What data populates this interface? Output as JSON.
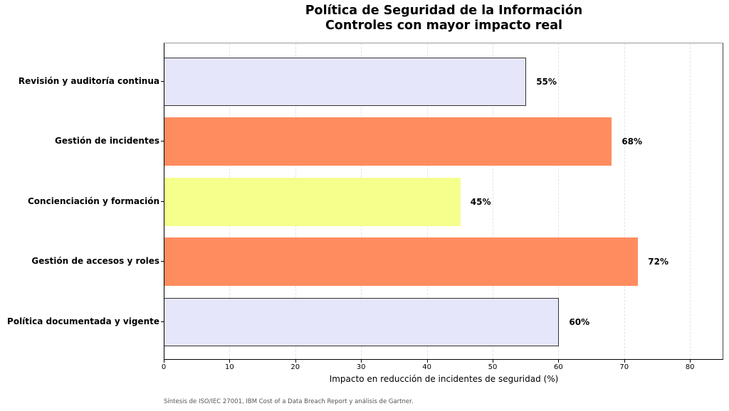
{
  "chart": {
    "title_line1": "Política de Seguridad de la Información",
    "title_line2": "Controles con mayor impacto real",
    "xlabel": "Impacto en reducción de incidentes de seguridad (%)",
    "footnote": "Síntesis de ISO/IEC 27001, IBM Cost of a Data Breach Report y análisis de Gartner.",
    "xticks": [
      "0",
      "10",
      "20",
      "30",
      "40",
      "50",
      "60",
      "70",
      "80"
    ],
    "bars": [
      {
        "label": "Revisión y auditoría continua",
        "value": 55,
        "value_label": "55%",
        "color": "#e6e6fa",
        "edged": true
      },
      {
        "label": "Gestión de incidentes",
        "value": 68,
        "value_label": "68%",
        "color": "#ff8c5f",
        "edged": false
      },
      {
        "label": "Concienciación y formación",
        "value": 45,
        "value_label": "45%",
        "color": "#f5ff8c",
        "edged": false
      },
      {
        "label": "Gestión de accesos y roles",
        "value": 72,
        "value_label": "72%",
        "color": "#ff8c5f",
        "edged": false
      },
      {
        "label": "Política documentada y vigente",
        "value": 60,
        "value_label": "60%",
        "color": "#e6e6fa",
        "edged": true
      }
    ]
  },
  "chart_data": {
    "type": "bar",
    "orientation": "horizontal",
    "title": "Política de Seguridad de la Información\nControles con mayor impacto real",
    "categories": [
      "Revisión y auditoría continua",
      "Gestión de incidentes",
      "Concienciación y formación",
      "Gestión de accesos y roles",
      "Política documentada y vigente"
    ],
    "values": [
      55,
      68,
      45,
      72,
      60
    ],
    "data_labels": [
      "55%",
      "68%",
      "45%",
      "72%",
      "60%"
    ],
    "colors": [
      "#e6e6fa",
      "#ff8c5f",
      "#f5ff8c",
      "#ff8c5f",
      "#e6e6fa"
    ],
    "xlabel": "Impacto en reducción de incidentes de seguridad (%)",
    "ylabel": "",
    "xlim": [
      0,
      85
    ],
    "xticks": [
      0,
      10,
      20,
      30,
      40,
      50,
      60,
      70,
      80
    ],
    "grid": "x, dashed, light",
    "legend": "none",
    "annotation": "Síntesis de ISO/IEC 27001, IBM Cost of a Data Breach Report y análisis de Gartner."
  }
}
